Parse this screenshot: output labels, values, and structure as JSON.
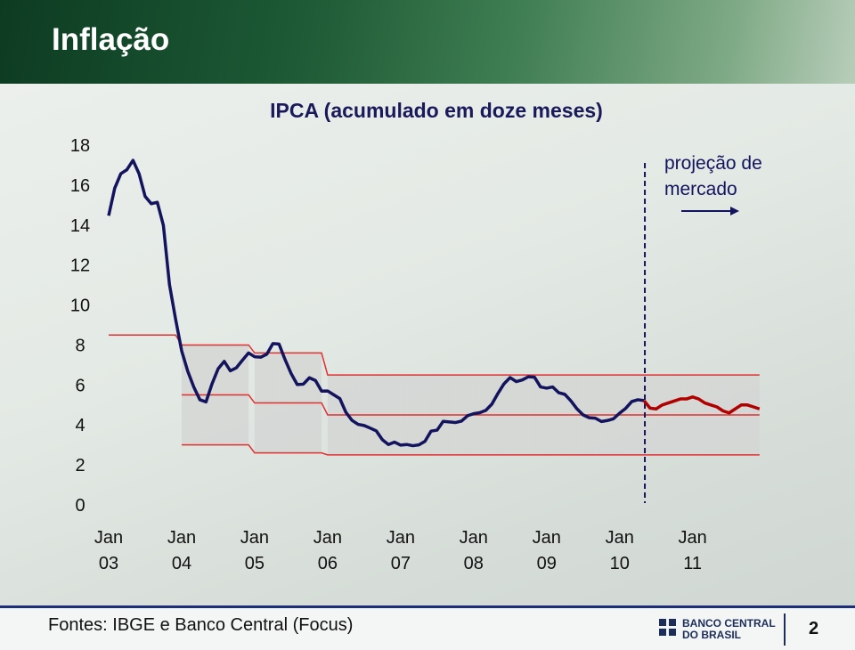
{
  "header": {
    "title": "Inflação"
  },
  "chart_data": {
    "type": "line",
    "title": "IPCA (acumulado em doze meses)",
    "annotation": "projeção de mercado",
    "categories": [
      "Jan 03",
      null,
      null,
      null,
      null,
      null,
      null,
      null,
      null,
      null,
      null,
      null,
      "Jan 04",
      null,
      null,
      null,
      null,
      null,
      null,
      null,
      null,
      null,
      null,
      null,
      "Jan 05",
      null,
      null,
      null,
      null,
      null,
      null,
      null,
      null,
      null,
      null,
      null,
      "Jan 06",
      null,
      null,
      null,
      null,
      null,
      null,
      null,
      null,
      null,
      null,
      null,
      "Jan 07",
      null,
      null,
      null,
      null,
      null,
      null,
      null,
      null,
      null,
      null,
      null,
      "Jan 08",
      null,
      null,
      null,
      null,
      null,
      null,
      null,
      null,
      null,
      null,
      null,
      "Jan 09",
      null,
      null,
      null,
      null,
      null,
      null,
      null,
      null,
      null,
      null,
      null,
      "Jan 10",
      null,
      null,
      null,
      null,
      null,
      null,
      null,
      null,
      null,
      null,
      null,
      "Jan 11",
      null,
      null,
      null,
      null,
      null,
      null,
      null,
      null,
      null,
      null,
      null
    ],
    "series": [
      {
        "color": "#14145e",
        "values": [
          14.47,
          15.85,
          16.57,
          16.77,
          17.24,
          16.57,
          15.43,
          15.07,
          15.14,
          13.98,
          11.02,
          9.3,
          7.71,
          6.69,
          5.89,
          5.26,
          5.15,
          6.06,
          6.81,
          7.18,
          6.71,
          6.86,
          7.24,
          7.6,
          7.41,
          7.39,
          7.54,
          8.07,
          8.05,
          7.27,
          6.57,
          6.02,
          6.04,
          6.36,
          6.22,
          5.69,
          5.7,
          5.51,
          5.32,
          4.63,
          4.23,
          4.03,
          3.97,
          3.84,
          3.7,
          3.26,
          3.02,
          3.14,
          2.99,
          3.02,
          2.96,
          3.0,
          3.18,
          3.69,
          3.74,
          4.18,
          4.15,
          4.12,
          4.19,
          4.46,
          4.56,
          4.61,
          4.73,
          5.04,
          5.58,
          6.06,
          6.37,
          6.17,
          6.25,
          6.41,
          6.39,
          5.9,
          5.84,
          5.9,
          5.61,
          5.53,
          5.2,
          4.8,
          4.5,
          4.36,
          4.34,
          4.17,
          4.22,
          4.31,
          4.59,
          4.83,
          5.17,
          5.26,
          5.22,
          null,
          null,
          null,
          null,
          null,
          null,
          null,
          null,
          null,
          null,
          null,
          null,
          null,
          null,
          null,
          null,
          null,
          null,
          null
        ]
      },
      {
        "color": "#b00000",
        "values": [
          null,
          null,
          null,
          null,
          null,
          null,
          null,
          null,
          null,
          null,
          null,
          null,
          null,
          null,
          null,
          null,
          null,
          null,
          null,
          null,
          null,
          null,
          null,
          null,
          null,
          null,
          null,
          null,
          null,
          null,
          null,
          null,
          null,
          null,
          null,
          null,
          null,
          null,
          null,
          null,
          null,
          null,
          null,
          null,
          null,
          null,
          null,
          null,
          null,
          null,
          null,
          null,
          null,
          null,
          null,
          null,
          null,
          null,
          null,
          null,
          null,
          null,
          null,
          null,
          null,
          null,
          null,
          null,
          null,
          null,
          null,
          null,
          null,
          null,
          null,
          null,
          null,
          null,
          null,
          null,
          null,
          null,
          null,
          null,
          null,
          null,
          null,
          null,
          5.22,
          4.84,
          4.8,
          5.0,
          5.1,
          5.2,
          5.3,
          5.3,
          5.4,
          5.3,
          5.1,
          5.0,
          4.9,
          4.7,
          4.6,
          4.8,
          5.0,
          5.0,
          4.9,
          4.8
        ]
      }
    ],
    "target_band": {
      "color": "#e03030",
      "fill": "#d4d6d4",
      "upper": [
        8.5,
        8.5,
        8.5,
        8.5,
        8.5,
        8.5,
        8.5,
        8.5,
        8.5,
        8.5,
        8.5,
        8.5,
        8,
        8,
        8,
        8,
        8,
        8,
        8,
        8,
        8,
        8,
        8,
        8,
        7.6,
        7.6,
        7.6,
        7.6,
        7.6,
        7.6,
        7.6,
        7.6,
        7.6,
        7.6,
        7.6,
        7.6,
        6.5,
        6.5,
        6.5,
        6.5,
        6.5,
        6.5,
        6.5,
        6.5,
        6.5,
        6.5,
        6.5,
        6.5,
        6.5,
        6.5,
        6.5,
        6.5,
        6.5,
        6.5,
        6.5,
        6.5,
        6.5,
        6.5,
        6.5,
        6.5,
        6.5,
        6.5,
        6.5,
        6.5,
        6.5,
        6.5,
        6.5,
        6.5,
        6.5,
        6.5,
        6.5,
        6.5,
        6.5,
        6.5,
        6.5,
        6.5,
        6.5,
        6.5,
        6.5,
        6.5,
        6.5,
        6.5,
        6.5,
        6.5,
        6.5,
        6.5,
        6.5,
        6.5,
        6.5,
        6.5,
        6.5,
        6.5,
        6.5,
        6.5,
        6.5,
        6.5,
        6.5,
        6.5,
        6.5,
        6.5,
        6.5,
        6.5,
        6.5,
        6.5,
        6.5,
        6.5,
        6.5,
        6.5
      ],
      "center": [
        null,
        null,
        null,
        null,
        null,
        null,
        null,
        null,
        null,
        null,
        null,
        null,
        5.5,
        5.5,
        5.5,
        5.5,
        5.5,
        5.5,
        5.5,
        5.5,
        5.5,
        5.5,
        5.5,
        5.5,
        5.1,
        5.1,
        5.1,
        5.1,
        5.1,
        5.1,
        5.1,
        5.1,
        5.1,
        5.1,
        5.1,
        5.1,
        4.5,
        4.5,
        4.5,
        4.5,
        4.5,
        4.5,
        4.5,
        4.5,
        4.5,
        4.5,
        4.5,
        4.5,
        4.5,
        4.5,
        4.5,
        4.5,
        4.5,
        4.5,
        4.5,
        4.5,
        4.5,
        4.5,
        4.5,
        4.5,
        4.5,
        4.5,
        4.5,
        4.5,
        4.5,
        4.5,
        4.5,
        4.5,
        4.5,
        4.5,
        4.5,
        4.5,
        4.5,
        4.5,
        4.5,
        4.5,
        4.5,
        4.5,
        4.5,
        4.5,
        4.5,
        4.5,
        4.5,
        4.5,
        4.5,
        4.5,
        4.5,
        4.5,
        4.5,
        4.5,
        4.5,
        4.5,
        4.5,
        4.5,
        4.5,
        4.5,
        4.5,
        4.5,
        4.5,
        4.5,
        4.5,
        4.5,
        4.5,
        4.5,
        4.5,
        4.5,
        4.5,
        4.5
      ],
      "lower": [
        null,
        null,
        null,
        null,
        null,
        null,
        null,
        null,
        null,
        null,
        null,
        null,
        3,
        3,
        3,
        3,
        3,
        3,
        3,
        3,
        3,
        3,
        3,
        3,
        2.6,
        2.6,
        2.6,
        2.6,
        2.6,
        2.6,
        2.6,
        2.6,
        2.6,
        2.6,
        2.6,
        2.6,
        2.5,
        2.5,
        2.5,
        2.5,
        2.5,
        2.5,
        2.5,
        2.5,
        2.5,
        2.5,
        2.5,
        2.5,
        2.5,
        2.5,
        2.5,
        2.5,
        2.5,
        2.5,
        2.5,
        2.5,
        2.5,
        2.5,
        2.5,
        2.5,
        2.5,
        2.5,
        2.5,
        2.5,
        2.5,
        2.5,
        2.5,
        2.5,
        2.5,
        2.5,
        2.5,
        2.5,
        2.5,
        2.5,
        2.5,
        2.5,
        2.5,
        2.5,
        2.5,
        2.5,
        2.5,
        2.5,
        2.5,
        2.5,
        2.5,
        2.5,
        2.5,
        2.5,
        2.5,
        2.5,
        2.5,
        2.5,
        2.5,
        2.5,
        2.5,
        2.5,
        2.5,
        2.5,
        2.5,
        2.5,
        2.5,
        2.5,
        2.5,
        2.5,
        2.5,
        2.5,
        2.5,
        2.5
      ]
    },
    "ylim": [
      0,
      18
    ],
    "yticks": [
      0,
      2,
      4,
      6,
      8,
      10,
      12,
      14,
      16,
      18
    ],
    "grid": false
  },
  "footer": {
    "source": "Fontes: IBGE e Banco Central (Focus)",
    "logo_line1": "BANCO CENTRAL",
    "logo_line2": "DO BRASIL",
    "page": "2"
  }
}
